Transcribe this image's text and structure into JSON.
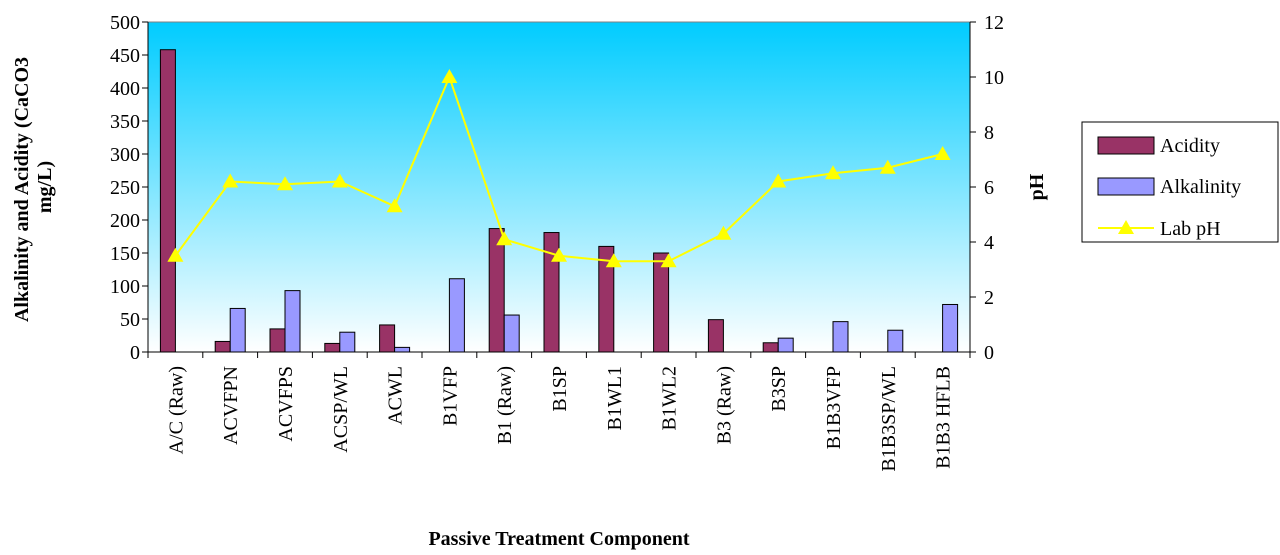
{
  "chart_data": {
    "type": "bar",
    "title": "",
    "xlabel": "Passive Treatment Component",
    "ylabel": "Alkalinity and Acidity (CaCO3 mg/L)",
    "ylabel_lines": [
      "Alkalinity and Acidity (CaCO3",
      "mg/L)"
    ],
    "y2label": "pH",
    "ylim": [
      0,
      500
    ],
    "y2lim": [
      0,
      12
    ],
    "yticks": [
      "0",
      "50",
      "100",
      "150",
      "200",
      "250",
      "300",
      "350",
      "400",
      "450",
      "500"
    ],
    "y2ticks": [
      "0",
      "2",
      "4",
      "6",
      "8",
      "10",
      "12"
    ],
    "categories": [
      [
        "A/C (Raw)"
      ],
      [
        "ACVFPN"
      ],
      [
        "ACVFPS"
      ],
      [
        "ACSP/WL"
      ],
      [
        "ACWL"
      ],
      [
        "B1VFP"
      ],
      [
        "B1 (Raw)"
      ],
      [
        "B1SP"
      ],
      [
        "B1WL1"
      ],
      [
        "B1WL2"
      ],
      [
        "B3 (Raw)"
      ],
      [
        "B3SP"
      ],
      [
        "B1B3VFP"
      ],
      [
        "B1B3SP/WL"
      ],
      [
        "B1B3 HFLB"
      ]
    ],
    "series": [
      {
        "name": "Acidity",
        "type": "bar",
        "axis": "left",
        "color": "#993366",
        "values": [
          458,
          16,
          35,
          13,
          41,
          0,
          187,
          181,
          160,
          150,
          49,
          14,
          0,
          0,
          0
        ]
      },
      {
        "name": "Alkalinity",
        "type": "bar",
        "axis": "left",
        "color": "#9999ff",
        "values": [
          0,
          66,
          93,
          30,
          7,
          111,
          56,
          0,
          0,
          0,
          0,
          21,
          46,
          33,
          72
        ]
      },
      {
        "name": "Lab pH",
        "type": "line",
        "axis": "right",
        "color": "#ffff00",
        "marker": "triangle",
        "values": [
          3.5,
          6.2,
          6.1,
          6.2,
          5.3,
          10.0,
          4.1,
          3.5,
          3.3,
          3.3,
          4.3,
          6.2,
          6.5,
          6.7,
          7.2
        ]
      }
    ],
    "background_gradient": [
      "#00ccff",
      "#ffffff"
    ],
    "grid": false,
    "legend": "right"
  }
}
